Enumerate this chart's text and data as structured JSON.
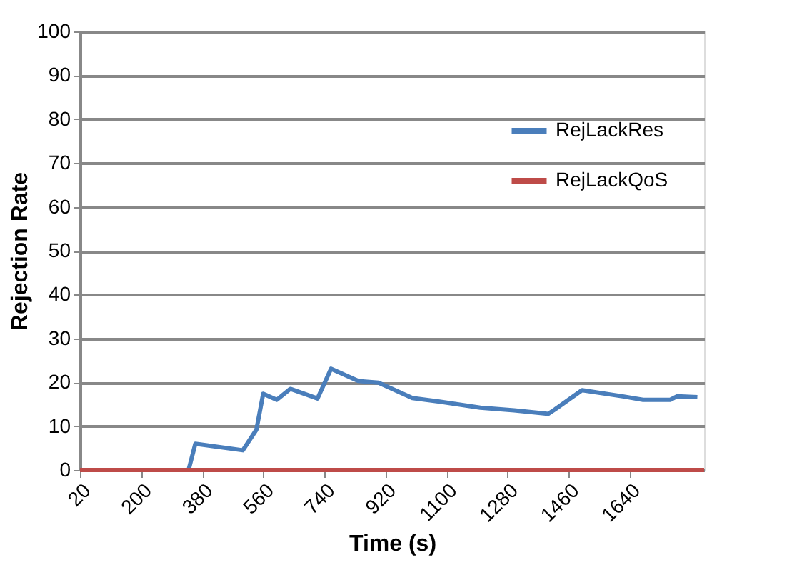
{
  "chart_data": {
    "type": "line",
    "xlabel": "Time (s)",
    "ylabel": "Rejection Rate",
    "xlim": [
      20,
      1860
    ],
    "xticks": [
      20,
      200,
      380,
      560,
      740,
      920,
      1100,
      1280,
      1460,
      1640
    ],
    "ylim": [
      0,
      100
    ],
    "yticks": [
      0,
      10,
      20,
      30,
      40,
      50,
      60,
      70,
      80,
      90,
      100
    ],
    "grid": "y",
    "legend": "right",
    "marker": "none",
    "line_style": "solid",
    "series": [
      {
        "name": "RejLackRes",
        "color": "#4a7ebb",
        "x": [
          20,
          340,
          360,
          500,
          540,
          560,
          600,
          640,
          720,
          760,
          840,
          900,
          1000,
          1080,
          1200,
          1300,
          1400,
          1420,
          1500,
          1620,
          1680,
          1760,
          1780,
          1840
        ],
        "values": [
          0,
          0,
          6.0,
          4.5,
          9.2,
          17.4,
          16.0,
          18.5,
          16.3,
          23.1,
          20.3,
          19.9,
          16.4,
          15.6,
          14.2,
          13.6,
          12.8,
          13.8,
          18.2,
          16.8,
          16.0,
          16.0,
          16.8,
          16.6
        ]
      },
      {
        "name": "RejLackQoS",
        "color": "#be4b48",
        "x": [
          20,
          1860
        ],
        "values": [
          0,
          0
        ]
      }
    ]
  }
}
